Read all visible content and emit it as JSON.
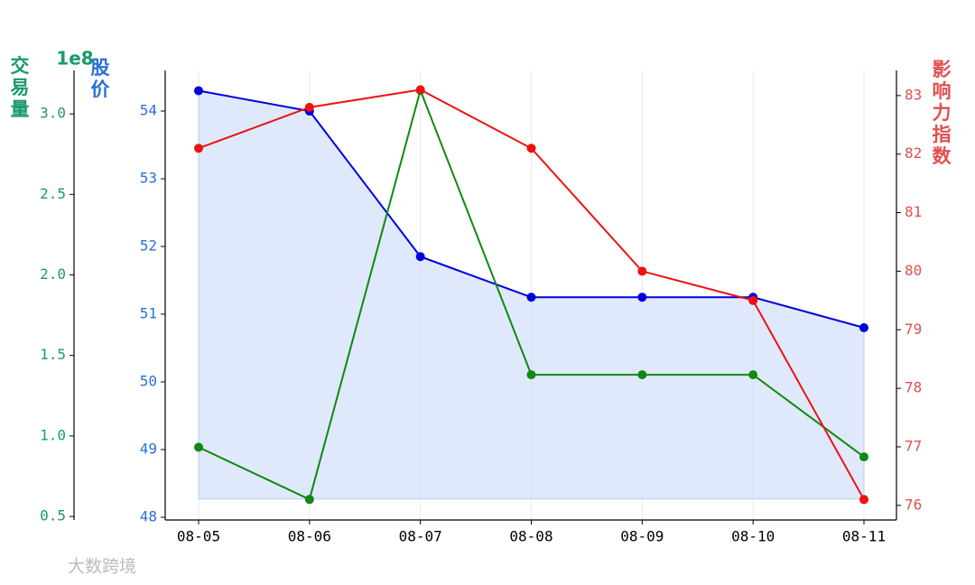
{
  "chart_data": {
    "type": "line",
    "categories": [
      "08-05",
      "08-06",
      "08-07",
      "08-08",
      "08-09",
      "08-10",
      "08-11"
    ],
    "series": [
      {
        "name": "股价",
        "color": "#0000dd",
        "values": [
          54.3,
          54.0,
          51.85,
          51.25,
          51.25,
          51.25,
          50.8
        ],
        "axis": "y",
        "fill_color": "#c9daf8",
        "fill_baseline": 48.27
      },
      {
        "name": "交易量",
        "color": "#118811",
        "values": [
          0.93,
          0.606,
          3.146,
          1.38,
          1.38,
          1.38,
          0.87
        ],
        "axis": "y3"
      },
      {
        "name": "影响力指数",
        "color": "#ee1111",
        "values": [
          82.1,
          82.8,
          83.1,
          82.1,
          80.0,
          79.5,
          76.1
        ],
        "axis": "y2"
      }
    ],
    "ylabel": "股价",
    "ylim": [
      47.96,
      54.6
    ],
    "yticks": [
      48,
      49,
      50,
      51,
      52,
      53,
      54
    ],
    "ycolor": "#2a6fd6",
    "y2label": "影响力指数",
    "y2lim": [
      75.75,
      83.43
    ],
    "y2ticks": [
      76,
      77,
      78,
      79,
      80,
      81,
      82,
      83
    ],
    "y2color": "#e05050",
    "y3label": "交易量",
    "y3offset": "1e8",
    "y3lim": [
      0.478,
      3.27
    ],
    "y3ticks": [
      0.5,
      {
        "value": 1,
        "label": "1.0"
      },
      1.5,
      {
        "value": 2,
        "label": "2.0"
      },
      2.5,
      {
        "value": 3,
        "label": "3.0"
      }
    ],
    "y3color": "#1a9a6a",
    "grid": true,
    "watermark": "大数跨境"
  }
}
